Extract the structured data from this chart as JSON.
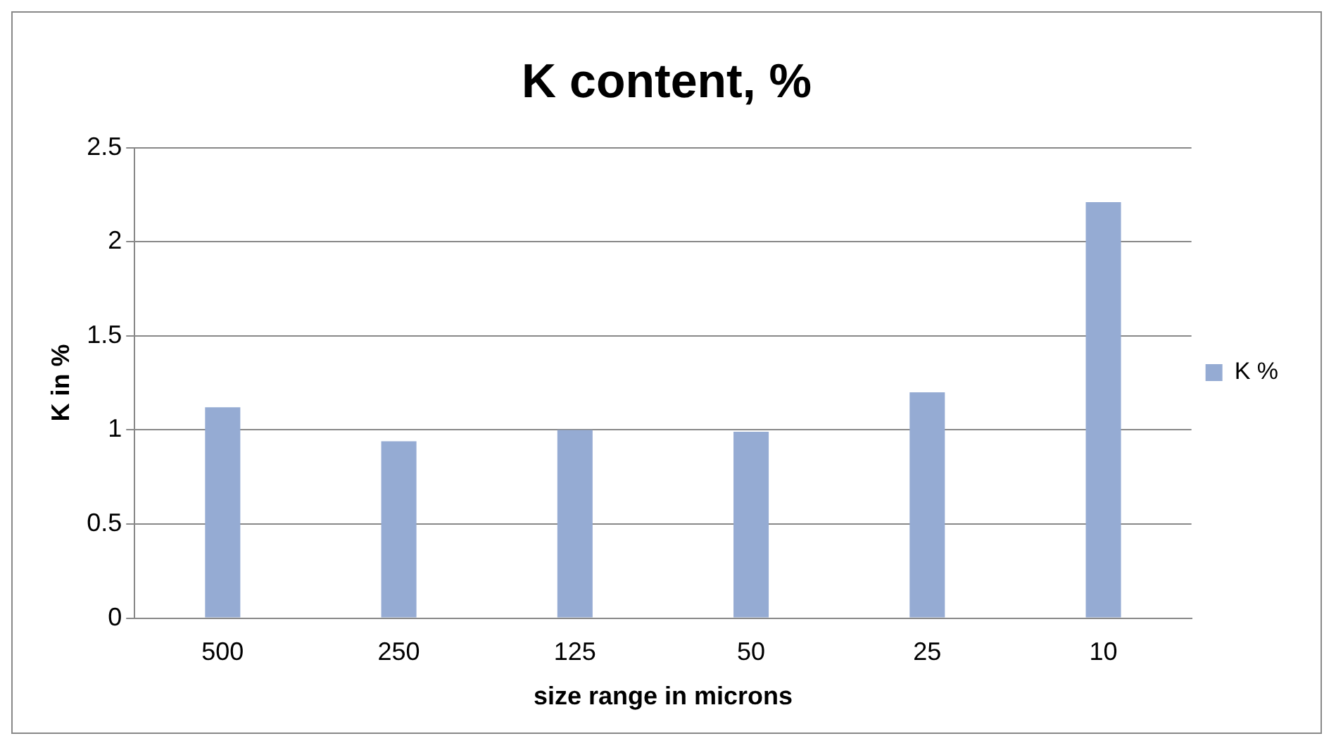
{
  "chart_data": {
    "type": "bar",
    "title": "K content, %",
    "xlabel": "size range in microns",
    "ylabel": "K in %",
    "categories": [
      "500",
      "250",
      "125",
      "50",
      "25",
      "10"
    ],
    "series": [
      {
        "name": "K %",
        "color": "#95abd3",
        "values": [
          1.12,
          0.94,
          1.0,
          0.99,
          1.2,
          2.21
        ]
      }
    ],
    "ylim": [
      0,
      2.5
    ],
    "yticks": [
      0,
      0.5,
      1,
      1.5,
      2,
      2.5
    ],
    "grid": "y",
    "legend": "right"
  }
}
